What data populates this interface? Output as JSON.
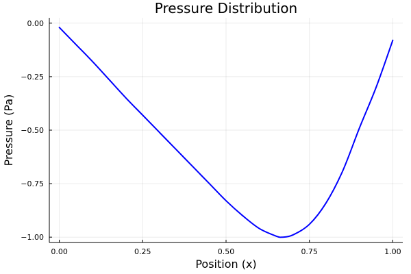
{
  "chart_data": {
    "type": "line",
    "title": "Pressure Distribution",
    "xlabel": "Position (x)",
    "ylabel": "Pressure (Pa)",
    "xlim": [
      -0.03,
      1.03
    ],
    "ylim": [
      -1.025,
      0.025
    ],
    "xticks": [
      0.0,
      0.25,
      0.5,
      0.75,
      1.0
    ],
    "xtick_labels": [
      "0.00",
      "0.25",
      "0.50",
      "0.75",
      "1.00"
    ],
    "yticks": [
      0.0,
      -0.25,
      -0.5,
      -0.75,
      -1.0
    ],
    "ytick_labels": [
      "0.00",
      "−0.25",
      "−0.50",
      "−0.75",
      "−1.00"
    ],
    "grid": true,
    "legend": false,
    "series": [
      {
        "color": "#0000ff",
        "x": [
          0.0,
          0.05,
          0.1,
          0.15,
          0.2,
          0.25,
          0.3,
          0.35,
          0.4,
          0.45,
          0.5,
          0.55,
          0.6,
          0.65,
          0.67,
          0.7,
          0.75,
          0.8,
          0.85,
          0.9,
          0.95,
          1.0
        ],
        "y": [
          -0.02,
          -0.1,
          -0.18,
          -0.265,
          -0.35,
          -0.43,
          -0.51,
          -0.59,
          -0.67,
          -0.75,
          -0.83,
          -0.9,
          -0.96,
          -0.995,
          -1.0,
          -0.99,
          -0.94,
          -0.84,
          -0.69,
          -0.49,
          -0.3,
          -0.08
        ]
      }
    ]
  }
}
